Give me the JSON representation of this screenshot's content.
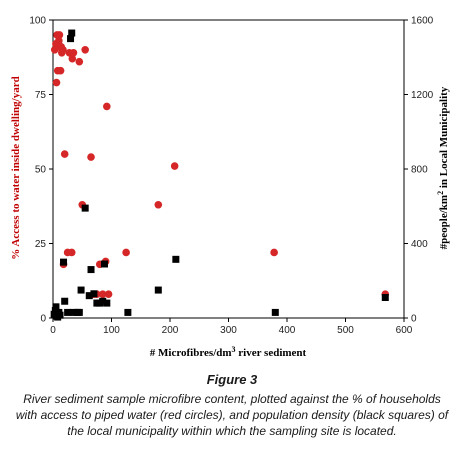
{
  "chart_data": {
    "type": "scatter",
    "xlabel_prefix": "# Microfibres/dm",
    "xlabel_suffix": " river sediment",
    "ylabel_left": "% Access to water inside dwelling/yard",
    "ylabel_right_prefix": "#people/km",
    "ylabel_right_suffix": " in Local Municipality",
    "superscript_x": "3",
    "superscript_y": "2",
    "x_range": [
      0,
      600
    ],
    "x_ticks": [
      0,
      100,
      200,
      300,
      400,
      500,
      600
    ],
    "y_left_range": [
      0,
      100
    ],
    "y_left_ticks": [
      0,
      25,
      50,
      75,
      100
    ],
    "y_right_range": [
      0,
      1600
    ],
    "y_right_ticks": [
      0,
      400,
      800,
      1200,
      1600
    ],
    "grid": false,
    "series": [
      {
        "axis": "left",
        "color": "#d62728",
        "marker": "circle",
        "points": [
          [
            3,
            90
          ],
          [
            5,
            92
          ],
          [
            6,
            79
          ],
          [
            7,
            95
          ],
          [
            8,
            83
          ],
          [
            9,
            91
          ],
          [
            10,
            93
          ],
          [
            11,
            95
          ],
          [
            13,
            83
          ],
          [
            14,
            91
          ],
          [
            15,
            89
          ],
          [
            17,
            90
          ],
          [
            18,
            18
          ],
          [
            20,
            55
          ],
          [
            25,
            22
          ],
          [
            28,
            89
          ],
          [
            32,
            22
          ],
          [
            33,
            87
          ],
          [
            35,
            89
          ],
          [
            45,
            86
          ],
          [
            50,
            38
          ],
          [
            55,
            90
          ],
          [
            65,
            54
          ],
          [
            70,
            8
          ],
          [
            75,
            8
          ],
          [
            80,
            18
          ],
          [
            85,
            8
          ],
          [
            90,
            19
          ],
          [
            92,
            71
          ],
          [
            95,
            8
          ],
          [
            125,
            22
          ],
          [
            180,
            38
          ],
          [
            208,
            51
          ],
          [
            378,
            22
          ],
          [
            568,
            8
          ]
        ]
      },
      {
        "axis": "right",
        "color": "#000000",
        "marker": "square",
        "points": [
          [
            2,
            20
          ],
          [
            4,
            40
          ],
          [
            5,
            60
          ],
          [
            6,
            10
          ],
          [
            8,
            5
          ],
          [
            10,
            30
          ],
          [
            12,
            15
          ],
          [
            18,
            300
          ],
          [
            20,
            90
          ],
          [
            25,
            30
          ],
          [
            30,
            1500
          ],
          [
            32,
            1530
          ],
          [
            35,
            30
          ],
          [
            42,
            30
          ],
          [
            45,
            30
          ],
          [
            48,
            150
          ],
          [
            55,
            590
          ],
          [
            62,
            120
          ],
          [
            65,
            260
          ],
          [
            70,
            130
          ],
          [
            75,
            80
          ],
          [
            80,
            80
          ],
          [
            85,
            90
          ],
          [
            88,
            290
          ],
          [
            92,
            80
          ],
          [
            128,
            30
          ],
          [
            180,
            150
          ],
          [
            210,
            315
          ],
          [
            380,
            30
          ],
          [
            568,
            110
          ]
        ]
      }
    ]
  },
  "caption": {
    "title": "Figure 3",
    "text": "River sediment sample microfibre content, plotted against the % of households with access to piped water (red circles), and population density (black squares) of the local municipality within which the sampling site is located."
  }
}
